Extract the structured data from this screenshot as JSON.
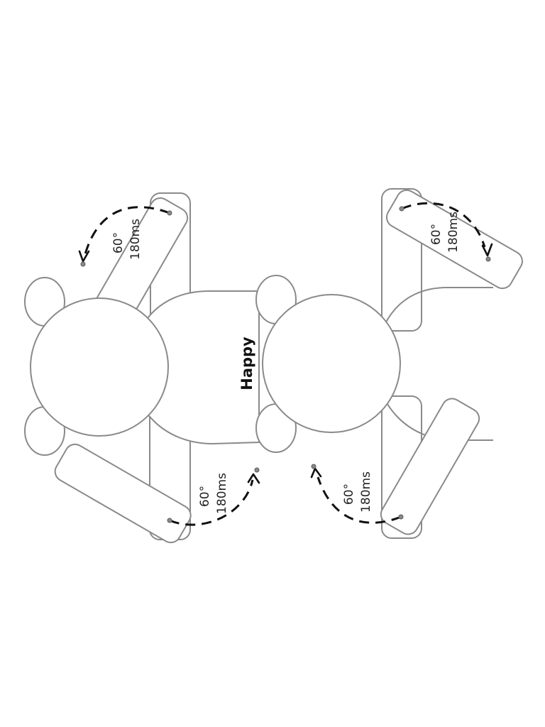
{
  "title": "Happy",
  "annotations": [
    {
      "angle": "60°",
      "duration": "180ms"
    },
    {
      "angle": "60°",
      "duration": "180ms"
    },
    {
      "angle": "60°",
      "duration": "180ms"
    },
    {
      "angle": "60°",
      "duration": "180ms"
    }
  ]
}
